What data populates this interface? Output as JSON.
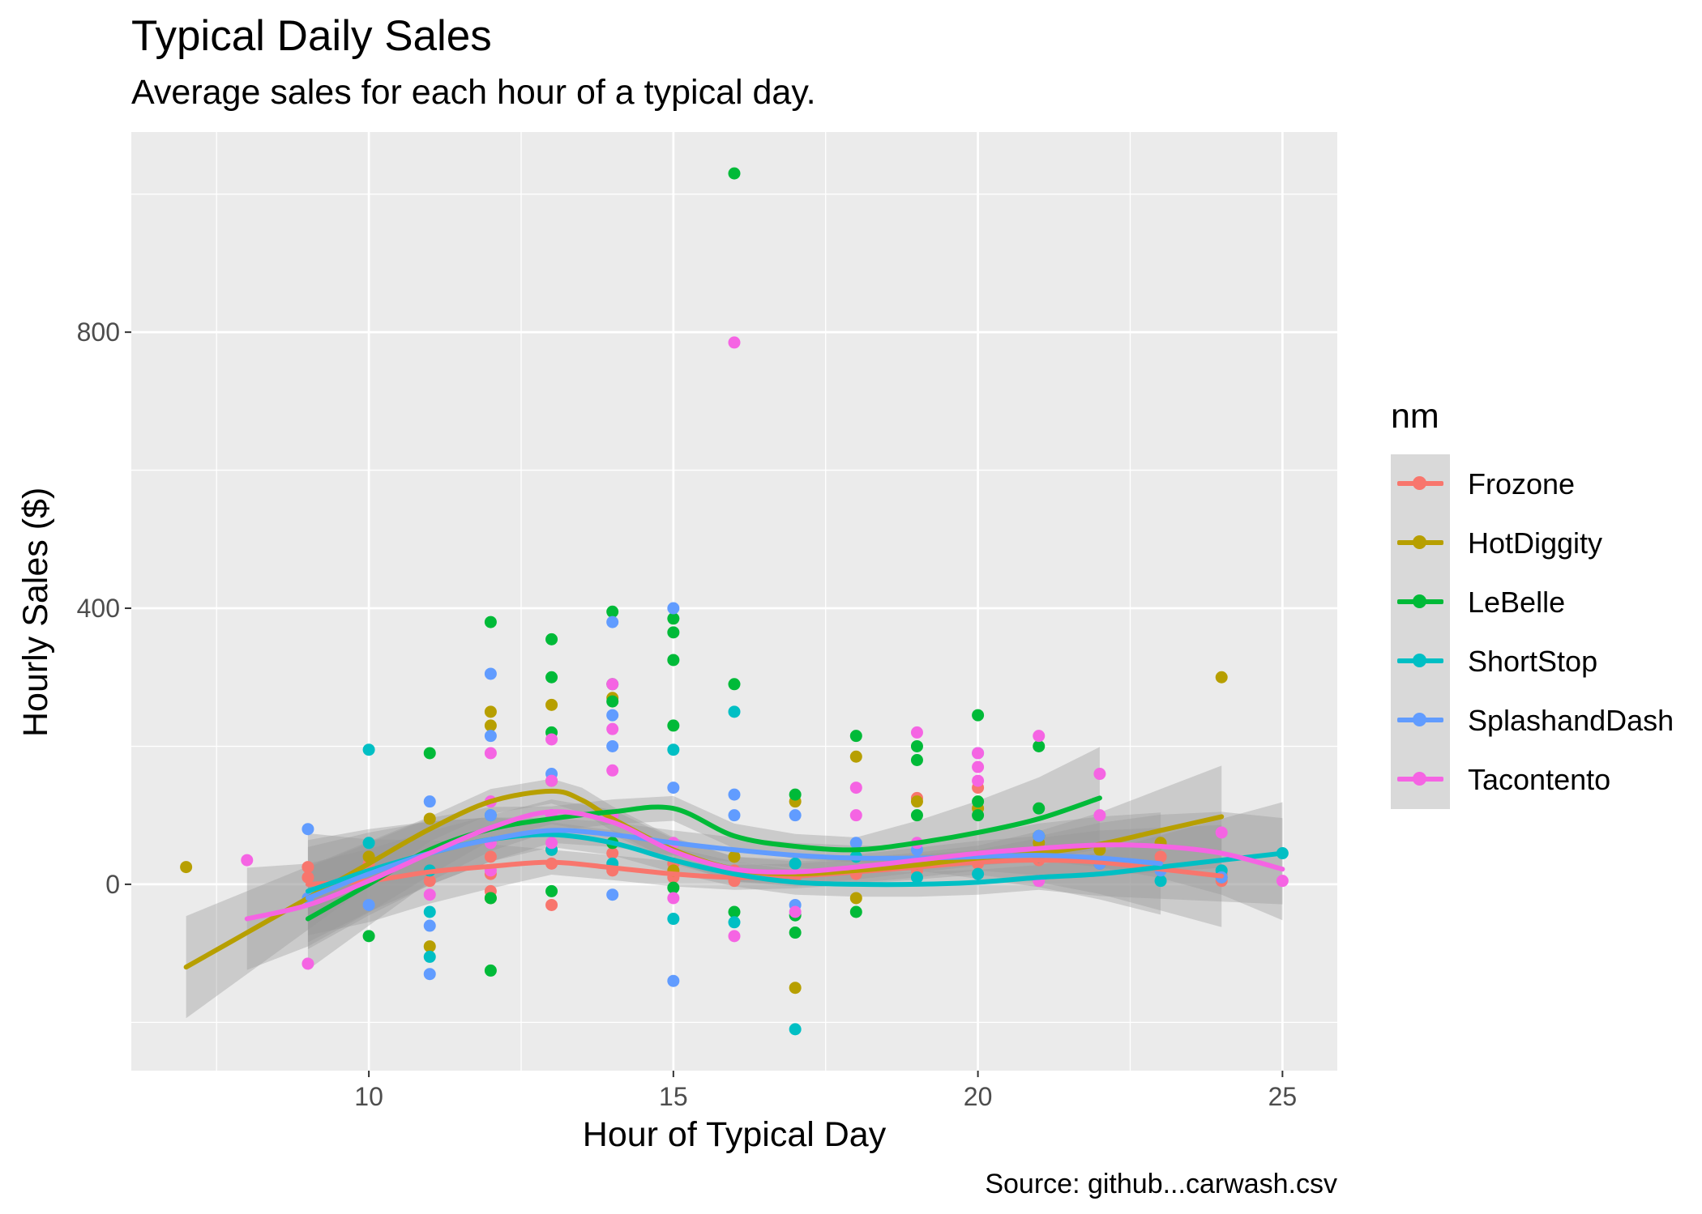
{
  "chart_data": {
    "type": "scatter",
    "title": "Typical Daily Sales",
    "subtitle": "Average sales for each hour of a typical day.",
    "caption": "Source: github...carwash.csv",
    "xlabel": "Hour of Typical Day",
    "ylabel": "Hourly Sales ($)",
    "xlim": [
      6.1,
      25.9
    ],
    "ylim": [
      -270,
      1090
    ],
    "x_ticks": [
      10,
      15,
      20,
      25
    ],
    "y_ticks": [
      0,
      400,
      800
    ],
    "grid": true,
    "background": "#ebebeb",
    "legend": {
      "title": "nm",
      "position": "right"
    },
    "series": [
      {
        "name": "Frozone",
        "color": "#f8766d",
        "points": [
          [
            9,
            25
          ],
          [
            9,
            10
          ],
          [
            10,
            30
          ],
          [
            11,
            20
          ],
          [
            11,
            5
          ],
          [
            12,
            15
          ],
          [
            12,
            40
          ],
          [
            12,
            -10
          ],
          [
            13,
            -30
          ],
          [
            13,
            30
          ],
          [
            14,
            20
          ],
          [
            14,
            45
          ],
          [
            15,
            10
          ],
          [
            15,
            30
          ],
          [
            16,
            5
          ],
          [
            16,
            20
          ],
          [
            17,
            10
          ],
          [
            18,
            15
          ],
          [
            19,
            20
          ],
          [
            19,
            125
          ],
          [
            20,
            140
          ],
          [
            20,
            30
          ],
          [
            21,
            35
          ],
          [
            22,
            30
          ],
          [
            23,
            40
          ],
          [
            24,
            15
          ],
          [
            24,
            5
          ]
        ],
        "smooth": [
          [
            9,
            0
          ],
          [
            10,
            5
          ],
          [
            11,
            18
          ],
          [
            12,
            26
          ],
          [
            13,
            32
          ],
          [
            14,
            24
          ],
          [
            15,
            15
          ],
          [
            16,
            10
          ],
          [
            17,
            12
          ],
          [
            18,
            18
          ],
          [
            19,
            25
          ],
          [
            20,
            32
          ],
          [
            21,
            35
          ],
          [
            22,
            32
          ],
          [
            23,
            22
          ],
          [
            24,
            12
          ]
        ]
      },
      {
        "name": "HotDiggity",
        "color": "#b79f00",
        "points": [
          [
            7,
            25
          ],
          [
            10,
            40
          ],
          [
            11,
            95
          ],
          [
            11,
            -90
          ],
          [
            12,
            250
          ],
          [
            12,
            230
          ],
          [
            12,
            -20
          ],
          [
            13,
            260
          ],
          [
            13,
            150
          ],
          [
            13,
            50
          ],
          [
            14,
            270
          ],
          [
            14,
            60
          ],
          [
            15,
            20
          ],
          [
            16,
            40
          ],
          [
            17,
            -150
          ],
          [
            17,
            120
          ],
          [
            18,
            185
          ],
          [
            18,
            -20
          ],
          [
            19,
            120
          ],
          [
            19,
            30
          ],
          [
            20,
            110
          ],
          [
            20,
            40
          ],
          [
            21,
            60
          ],
          [
            22,
            50
          ],
          [
            23,
            60
          ],
          [
            24,
            300
          ],
          [
            24,
            10
          ]
        ],
        "smooth": [
          [
            7,
            -120
          ],
          [
            8,
            -70
          ],
          [
            9,
            -20
          ],
          [
            10,
            30
          ],
          [
            11,
            80
          ],
          [
            12,
            120
          ],
          [
            13,
            135
          ],
          [
            13.5,
            122
          ],
          [
            14,
            95
          ],
          [
            15,
            50
          ],
          [
            16,
            22
          ],
          [
            17,
            15
          ],
          [
            18,
            20
          ],
          [
            19,
            28
          ],
          [
            20,
            38
          ],
          [
            21,
            45
          ],
          [
            22,
            58
          ],
          [
            23,
            78
          ],
          [
            24,
            98
          ]
        ]
      },
      {
        "name": "LeBelle",
        "color": "#00ba38",
        "points": [
          [
            10,
            -75
          ],
          [
            11,
            190
          ],
          [
            12,
            380
          ],
          [
            12,
            -20
          ],
          [
            12,
            -125
          ],
          [
            13,
            355
          ],
          [
            13,
            300
          ],
          [
            13,
            220
          ],
          [
            13,
            -10
          ],
          [
            14,
            395
          ],
          [
            14,
            290
          ],
          [
            14,
            265
          ],
          [
            14,
            60
          ],
          [
            15,
            385
          ],
          [
            15,
            365
          ],
          [
            15,
            325
          ],
          [
            15,
            230
          ],
          [
            15,
            -5
          ],
          [
            16,
            1030
          ],
          [
            16,
            290
          ],
          [
            16,
            -40
          ],
          [
            17,
            130
          ],
          [
            17,
            -70
          ],
          [
            17,
            -45
          ],
          [
            18,
            215
          ],
          [
            18,
            -40
          ],
          [
            19,
            200
          ],
          [
            19,
            180
          ],
          [
            19,
            100
          ],
          [
            20,
            245
          ],
          [
            20,
            120
          ],
          [
            20,
            100
          ],
          [
            21,
            200
          ],
          [
            21,
            110
          ],
          [
            21,
            70
          ]
        ],
        "smooth": [
          [
            9,
            -50
          ],
          [
            10,
            0
          ],
          [
            11,
            50
          ],
          [
            12,
            80
          ],
          [
            13,
            95
          ],
          [
            14,
            105
          ],
          [
            15,
            110
          ],
          [
            16,
            70
          ],
          [
            17,
            55
          ],
          [
            18,
            50
          ],
          [
            19,
            60
          ],
          [
            20,
            75
          ],
          [
            21,
            95
          ],
          [
            22,
            125
          ]
        ]
      },
      {
        "name": "ShortStop",
        "color": "#00bfc4",
        "points": [
          [
            10,
            195
          ],
          [
            10,
            60
          ],
          [
            11,
            -40
          ],
          [
            11,
            -105
          ],
          [
            11,
            20
          ],
          [
            12,
            100
          ],
          [
            13,
            50
          ],
          [
            14,
            30
          ],
          [
            15,
            195
          ],
          [
            15,
            -50
          ],
          [
            16,
            250
          ],
          [
            16,
            -55
          ],
          [
            17,
            -210
          ],
          [
            17,
            30
          ],
          [
            18,
            40
          ],
          [
            19,
            10
          ],
          [
            20,
            15
          ],
          [
            21,
            40
          ],
          [
            22,
            30
          ],
          [
            23,
            5
          ],
          [
            24,
            20
          ],
          [
            25,
            45
          ]
        ],
        "smooth": [
          [
            9,
            -10
          ],
          [
            10,
            20
          ],
          [
            11,
            45
          ],
          [
            12,
            65
          ],
          [
            13,
            72
          ],
          [
            14,
            60
          ],
          [
            15,
            35
          ],
          [
            16,
            15
          ],
          [
            17,
            3
          ],
          [
            18,
            0
          ],
          [
            19,
            0
          ],
          [
            20,
            3
          ],
          [
            21,
            10
          ],
          [
            22,
            15
          ],
          [
            23,
            25
          ],
          [
            24,
            35
          ],
          [
            25,
            45
          ]
        ]
      },
      {
        "name": "SplashandDash",
        "color": "#619cff",
        "points": [
          [
            9,
            80
          ],
          [
            9,
            -20
          ],
          [
            10,
            -30
          ],
          [
            11,
            120
          ],
          [
            11,
            -60
          ],
          [
            11,
            -130
          ],
          [
            12,
            305
          ],
          [
            12,
            215
          ],
          [
            12,
            100
          ],
          [
            13,
            160
          ],
          [
            13,
            100
          ],
          [
            14,
            380
          ],
          [
            14,
            245
          ],
          [
            14,
            200
          ],
          [
            14,
            -15
          ],
          [
            15,
            400
          ],
          [
            15,
            140
          ],
          [
            15,
            -140
          ],
          [
            16,
            130
          ],
          [
            16,
            100
          ],
          [
            17,
            100
          ],
          [
            17,
            -30
          ],
          [
            18,
            60
          ],
          [
            19,
            50
          ],
          [
            20,
            190
          ],
          [
            21,
            70
          ],
          [
            22,
            30
          ],
          [
            23,
            20
          ],
          [
            24,
            10
          ]
        ],
        "smooth": [
          [
            9,
            -20
          ],
          [
            10,
            15
          ],
          [
            11,
            45
          ],
          [
            12,
            65
          ],
          [
            13,
            78
          ],
          [
            14,
            72
          ],
          [
            15,
            60
          ],
          [
            16,
            50
          ],
          [
            17,
            42
          ],
          [
            18,
            38
          ],
          [
            19,
            38
          ],
          [
            20,
            40
          ],
          [
            21,
            42
          ],
          [
            22,
            38
          ],
          [
            23,
            30
          ]
        ]
      },
      {
        "name": "Tacontento",
        "color": "#f564e3",
        "points": [
          [
            8,
            35
          ],
          [
            9,
            -115
          ],
          [
            11,
            -15
          ],
          [
            12,
            190
          ],
          [
            12,
            120
          ],
          [
            12,
            60
          ],
          [
            12,
            20
          ],
          [
            13,
            210
          ],
          [
            13,
            150
          ],
          [
            13,
            100
          ],
          [
            13,
            60
          ],
          [
            14,
            290
          ],
          [
            14,
            225
          ],
          [
            14,
            165
          ],
          [
            14,
            100
          ],
          [
            15,
            60
          ],
          [
            15,
            -20
          ],
          [
            16,
            785
          ],
          [
            16,
            -75
          ],
          [
            17,
            -40
          ],
          [
            18,
            140
          ],
          [
            18,
            100
          ],
          [
            19,
            220
          ],
          [
            19,
            60
          ],
          [
            20,
            190
          ],
          [
            20,
            170
          ],
          [
            20,
            150
          ],
          [
            21,
            215
          ],
          [
            21,
            5
          ],
          [
            22,
            160
          ],
          [
            22,
            100
          ],
          [
            24,
            75
          ],
          [
            25,
            5
          ]
        ],
        "smooth": [
          [
            8,
            -50
          ],
          [
            9,
            -30
          ],
          [
            10,
            5
          ],
          [
            11,
            45
          ],
          [
            12,
            82
          ],
          [
            13,
            105
          ],
          [
            14,
            90
          ],
          [
            15,
            48
          ],
          [
            16,
            22
          ],
          [
            17,
            18
          ],
          [
            18,
            25
          ],
          [
            19,
            35
          ],
          [
            20,
            45
          ],
          [
            21,
            52
          ],
          [
            22,
            57
          ],
          [
            23,
            55
          ],
          [
            24,
            45
          ],
          [
            25,
            22
          ]
        ]
      }
    ]
  }
}
